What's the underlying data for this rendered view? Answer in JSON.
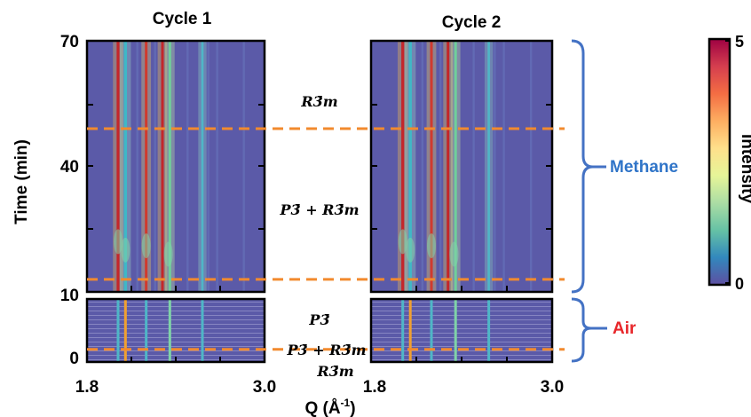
{
  "chart_data": {
    "type": "heatmap",
    "subtitle": "",
    "panels": [
      {
        "name": "Cycle 1",
        "title": "Cycle 1"
      },
      {
        "name": "Cycle 2",
        "title": "Cycle 2"
      }
    ],
    "xlabel": "Q (Å-1)",
    "xlabel_base": "Q (Å",
    "xlabel_sup": "-1",
    "xlabel_close": ")",
    "xlim": [
      1.8,
      3.0
    ],
    "x_ticks": [
      "1.8",
      "3.0"
    ],
    "ylabel": "Time (min)",
    "y_ticks_top": [
      "70",
      "40",
      "10"
    ],
    "y_ticks_bottom": [
      "10",
      "0"
    ],
    "ylim_methane": [
      10,
      70
    ],
    "ylim_air": [
      0,
      10
    ],
    "dashed_lines_time_min": [
      49,
      13,
      2
    ],
    "phase_labels": {
      "methane_upper": "R3̄m",
      "methane_lower": "P3̄ + R3̄m",
      "air_upper": "P3̄",
      "air_middle": "P3̄ + R3̄m",
      "air_lower": "R3̄m"
    },
    "atmospheres": [
      {
        "name": "Methane",
        "time_range": [
          10,
          70
        ],
        "color": "#2f74c8"
      },
      {
        "name": "Air",
        "time_range": [
          0,
          10
        ],
        "color": "#e8262a"
      }
    ],
    "peaks_Q": [
      2.01,
      2.06,
      2.2,
      2.31,
      2.36,
      2.58
    ],
    "colorbar": {
      "label": "Intensity",
      "range": [
        0,
        5
      ],
      "tick_labels": [
        "5",
        "0"
      ],
      "colors": [
        "#5e4fa2",
        "#3288bd",
        "#66c2a5",
        "#abdda4",
        "#e6f598",
        "#fee08b",
        "#fdae61",
        "#f46d43",
        "#d53e4f",
        "#9e0142"
      ]
    },
    "colors": {
      "background": "#5b5aa8",
      "dashed_line": "#f28a2e",
      "bracket": "#4472c4"
    }
  }
}
